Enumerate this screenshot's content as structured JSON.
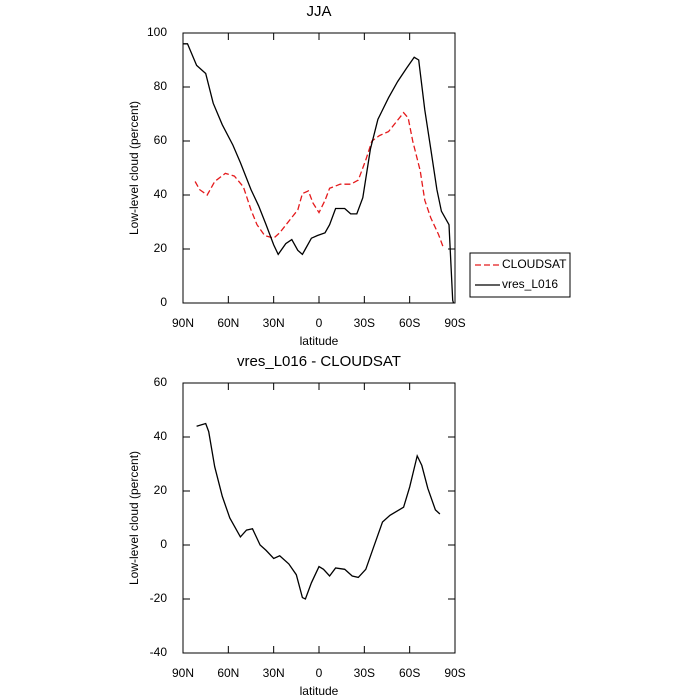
{
  "chart_data": [
    {
      "type": "line",
      "title": "JJA",
      "xlabel": "latitude",
      "ylabel": "Low-level cloud (percent)",
      "xlim": [
        90,
        -90
      ],
      "xticks": [
        {
          "value": 90,
          "label": "90N"
        },
        {
          "value": 60,
          "label": "60N"
        },
        {
          "value": 30,
          "label": "30N"
        },
        0,
        {
          "value": -30,
          "label": "30S"
        },
        {
          "value": -60,
          "label": "60S"
        },
        {
          "value": -90,
          "label": "90S"
        }
      ],
      "ylim": [
        0,
        100
      ],
      "yticks": [
        0,
        20,
        40,
        60,
        80,
        100
      ],
      "legend": "right",
      "series": [
        {
          "name": "CLOUDSAT",
          "color": "#e41a1c",
          "dash": true,
          "x": [
            82,
            79,
            74,
            69,
            62,
            56,
            50,
            45,
            41,
            36,
            30,
            26,
            19,
            14,
            11,
            7,
            4,
            0,
            -4,
            -7,
            -14,
            -21,
            -26,
            -31,
            -35,
            -40,
            -46,
            -51,
            -56,
            -59,
            -62,
            -67,
            -70,
            -74,
            -79,
            -82
          ],
          "values": [
            45,
            42,
            40,
            45,
            48,
            47,
            43,
            34.5,
            29,
            25,
            24,
            26,
            31,
            34.5,
            40.5,
            41.5,
            37,
            33.5,
            38,
            42.5,
            44,
            44,
            45.5,
            53,
            60,
            62,
            63.5,
            67,
            70.5,
            68.5,
            60,
            49,
            38,
            31.5,
            25.5,
            21
          ]
        },
        {
          "name": "vres_L016",
          "color": "#000000",
          "dash": false,
          "x": [
            90,
            87,
            81,
            75,
            70,
            64,
            57,
            52,
            45,
            40,
            35,
            30,
            27,
            22,
            18,
            14,
            11,
            9,
            5,
            1,
            -4,
            -7,
            -11,
            -17,
            -21,
            -25,
            -29,
            -34,
            -39,
            -46,
            -52,
            -58,
            -63,
            -66,
            -70,
            -74,
            -78,
            -81,
            -86,
            -88.5,
            -89
          ],
          "values": [
            96,
            96,
            88,
            85,
            74,
            66,
            58.5,
            52,
            42,
            36,
            29,
            21.5,
            18,
            22,
            23.5,
            19.5,
            18,
            20,
            24,
            25,
            26,
            29,
            35,
            35,
            33,
            33,
            39,
            57,
            68,
            76,
            82,
            87,
            91,
            90,
            71.5,
            57,
            42,
            34,
            29,
            1,
            0
          ]
        }
      ]
    },
    {
      "type": "line",
      "title": "vres_L016 - CLOUDSAT",
      "xlabel": "latitude",
      "ylabel": "Low-level cloud (percent)",
      "xlim": [
        90,
        -90
      ],
      "xticks": [
        {
          "value": 90,
          "label": "90N"
        },
        {
          "value": 60,
          "label": "60N"
        },
        {
          "value": 30,
          "label": "30N"
        },
        0,
        {
          "value": -30,
          "label": "30S"
        },
        {
          "value": -60,
          "label": "60S"
        },
        {
          "value": -90,
          "label": "90S"
        }
      ],
      "ylim": [
        -40,
        60
      ],
      "yticks": [
        -40,
        -20,
        0,
        20,
        40,
        60
      ],
      "series": [
        {
          "color": "#000000",
          "dash": false,
          "x": [
            81,
            75,
            73,
            69,
            64,
            59,
            52,
            48,
            44,
            39,
            35,
            30,
            26,
            20,
            15,
            11,
            9,
            5,
            0,
            -3,
            -7,
            -11,
            -17,
            -22,
            -26,
            -31,
            -36,
            -42,
            -47,
            -56,
            -60,
            -65,
            -68,
            -72,
            -77,
            -80
          ],
          "values": [
            44,
            45,
            42,
            29,
            18,
            10,
            3,
            5.5,
            6,
            0,
            -2,
            -5,
            -4,
            -7,
            -11,
            -19.5,
            -20,
            -14,
            -8,
            -9,
            -11.5,
            -8.5,
            -9,
            -11.5,
            -12,
            -9,
            -1,
            8.5,
            11,
            14,
            21.5,
            33,
            29.5,
            21,
            13,
            11.5
          ]
        }
      ]
    }
  ]
}
